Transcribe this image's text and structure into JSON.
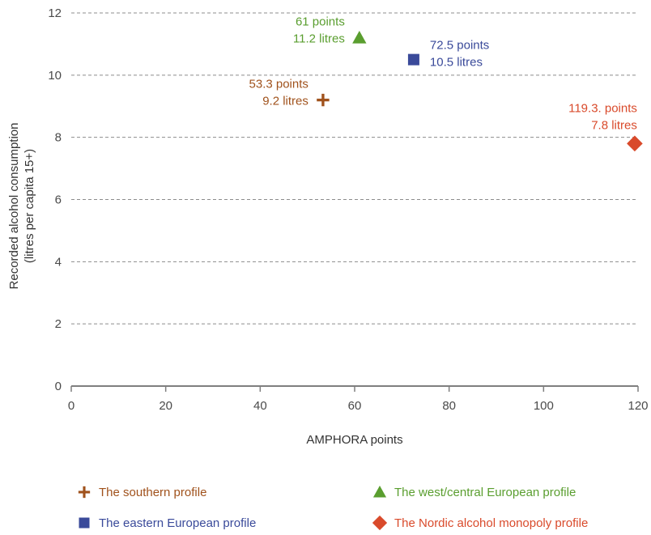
{
  "chart_data": {
    "type": "scatter",
    "title": "",
    "xlabel": "AMPHORA points",
    "ylabel": [
      "Recorded alcohol consumption",
      "(litres per capita 15+)"
    ],
    "xlim": [
      0,
      120
    ],
    "ylim": [
      0,
      12
    ],
    "x_ticks": [
      0,
      20,
      40,
      60,
      80,
      100,
      120
    ],
    "y_ticks": [
      0,
      2,
      4,
      6,
      8,
      10,
      12
    ],
    "grid": "horizontal dashed",
    "legend_position": "bottom",
    "series": [
      {
        "name": "The southern profile",
        "marker": "plus",
        "color": "#a0521c",
        "x": 53.3,
        "y": 9.2,
        "label": [
          "53.3 points",
          "9.2 litres"
        ],
        "label_side": "left"
      },
      {
        "name": "The west/central European profile",
        "marker": "triangle",
        "color": "#5a9e2f",
        "x": 61,
        "y": 11.2,
        "label": [
          "61 points",
          "11.2 litres"
        ],
        "label_side": "left"
      },
      {
        "name": "The eastern European profile",
        "marker": "square",
        "color": "#3a4a9a",
        "x": 72.5,
        "y": 10.5,
        "label": [
          "72.5 points",
          "10.5 litres"
        ],
        "label_side": "right"
      },
      {
        "name": "The Nordic alcohol monopoly profile",
        "marker": "diamond",
        "color": "#d94a2b",
        "x": 119.3,
        "y": 7.8,
        "label": [
          "119.3. points",
          "7.8 litres"
        ],
        "label_side": "above"
      }
    ]
  }
}
